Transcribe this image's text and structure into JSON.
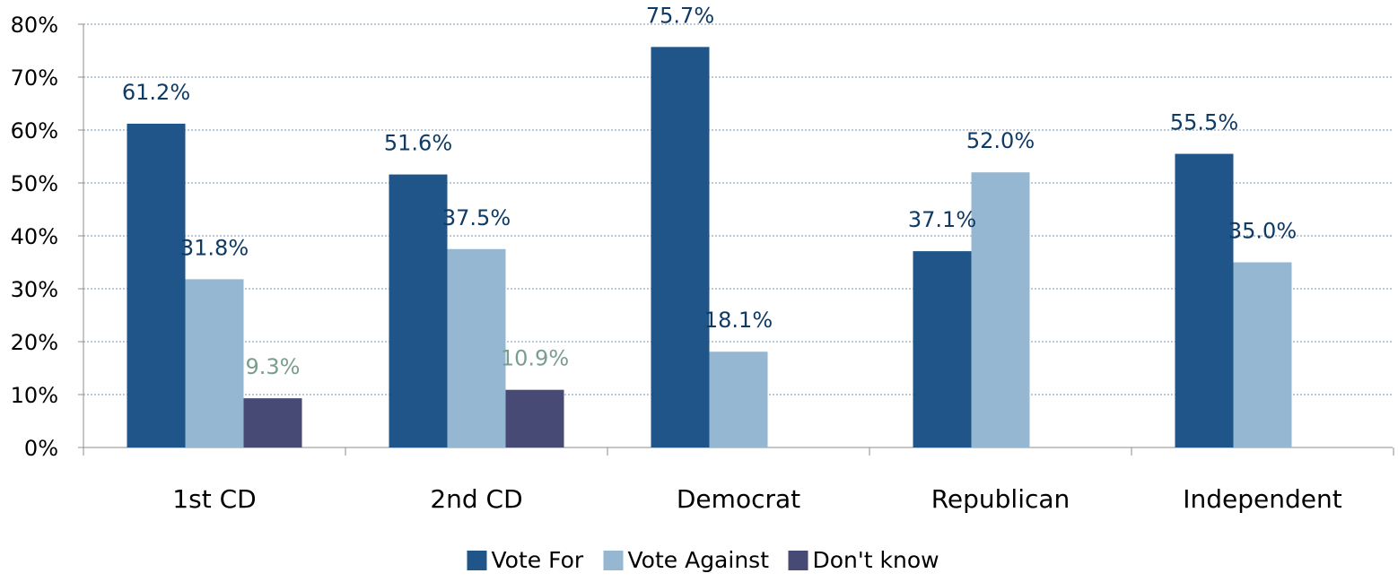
{
  "chart_data": {
    "type": "bar",
    "categories": [
      "1st CD",
      "2nd CD",
      "Democrat",
      "Republican",
      "Independent"
    ],
    "series": [
      {
        "name": "Vote For",
        "color": "#1f5588",
        "label_color": "#0f3a63",
        "values": [
          61.2,
          51.6,
          75.7,
          37.1,
          55.5
        ],
        "labels": [
          "61.2%",
          "51.6%",
          "75.7%",
          "37.1%",
          "55.5%"
        ]
      },
      {
        "name": "Vote Against",
        "color": "#95b7d1",
        "label_color": "#0f3a63",
        "values": [
          31.8,
          37.5,
          18.1,
          52.0,
          35.0
        ],
        "labels": [
          "31.8%",
          "37.5%",
          "18.1%",
          "52.0%",
          "35.0%"
        ]
      },
      {
        "name": "Don't know",
        "color": "#474a75",
        "label_color": "#7a9e8e",
        "values": [
          9.3,
          10.9,
          null,
          null,
          null
        ],
        "labels": [
          "9.3%",
          "10.9%",
          null,
          null,
          null
        ]
      }
    ],
    "y_ticks": [
      "0%",
      "10%",
      "20%",
      "30%",
      "40%",
      "50%",
      "60%",
      "70%",
      "80%"
    ],
    "ylim": [
      0,
      80
    ],
    "y_unit": "%",
    "grid": true,
    "grid_style": "dotted",
    "legend_position": "bottom-center",
    "title": "",
    "xlabel": "",
    "ylabel": ""
  }
}
